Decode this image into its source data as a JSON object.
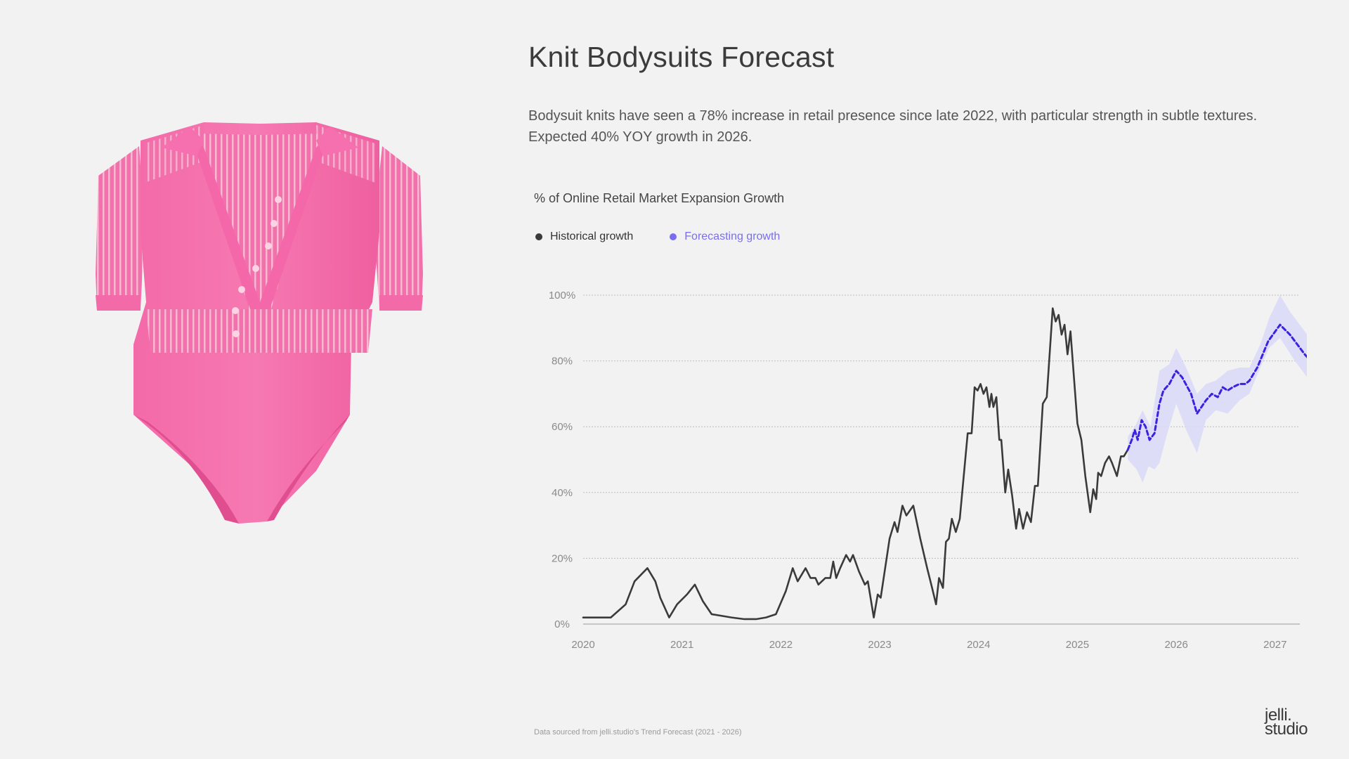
{
  "title": "Knit Bodysuits Forecast",
  "description": "Bodysuit knits have seen a 78% increase in retail presence since late 2022, with particular strength in subtle textures. Expected 40% YOY growth in 2026.",
  "footnote": "Data sourced from jelli.studio's Trend Forecast (2021 - 2026)",
  "logo": {
    "line1": "jelli.",
    "line2": "studio"
  },
  "colors": {
    "historical": "#3a3a3a",
    "forecast": "#3a22e0",
    "forecast_band": "#dcdaf8",
    "forecast_legend": "#7a6ef0",
    "product": "#f06aa8"
  },
  "chart_data": {
    "type": "line",
    "title": "% of Online Retail Market Expansion Growth",
    "xlabel": "",
    "ylabel": "",
    "xlim": [
      2020,
      2027.25
    ],
    "ylim": [
      0,
      100
    ],
    "x_ticks": [
      "2020",
      "2021",
      "2022",
      "2023",
      "2024",
      "2025",
      "2026",
      "2027"
    ],
    "y_ticks": [
      "0%",
      "20%",
      "40%",
      "60%",
      "80%",
      "100%"
    ],
    "grid": true,
    "legend_position": "top-left",
    "series": [
      {
        "name": "Historical growth",
        "style": "solid",
        "points": [
          [
            2020.0,
            2
          ],
          [
            2020.15,
            2
          ],
          [
            2020.28,
            2
          ],
          [
            2020.43,
            6
          ],
          [
            2020.52,
            13
          ],
          [
            2020.65,
            17
          ],
          [
            2020.73,
            13
          ],
          [
            2020.78,
            8
          ],
          [
            2020.87,
            2
          ],
          [
            2020.95,
            6
          ],
          [
            2021.05,
            9
          ],
          [
            2021.13,
            12
          ],
          [
            2021.21,
            7
          ],
          [
            2021.3,
            3
          ],
          [
            2021.5,
            2
          ],
          [
            2021.63,
            1.5
          ],
          [
            2021.75,
            1.5
          ],
          [
            2021.85,
            2
          ],
          [
            2021.95,
            3
          ],
          [
            2022.05,
            10
          ],
          [
            2022.12,
            17
          ],
          [
            2022.17,
            13
          ],
          [
            2022.25,
            17
          ],
          [
            2022.3,
            14
          ],
          [
            2022.35,
            14
          ],
          [
            2022.38,
            12
          ],
          [
            2022.45,
            14
          ],
          [
            2022.5,
            14
          ],
          [
            2022.53,
            19
          ],
          [
            2022.56,
            14
          ],
          [
            2022.6,
            17
          ],
          [
            2022.66,
            21
          ],
          [
            2022.7,
            19
          ],
          [
            2022.73,
            21
          ],
          [
            2022.79,
            16
          ],
          [
            2022.85,
            12
          ],
          [
            2022.88,
            13
          ],
          [
            2022.94,
            2
          ],
          [
            2022.98,
            9
          ],
          [
            2023.01,
            8
          ],
          [
            2023.1,
            26
          ],
          [
            2023.15,
            31
          ],
          [
            2023.18,
            28
          ],
          [
            2023.23,
            36
          ],
          [
            2023.27,
            33
          ],
          [
            2023.34,
            36
          ],
          [
            2023.41,
            26
          ],
          [
            2023.48,
            17
          ],
          [
            2023.53,
            11
          ],
          [
            2023.57,
            6
          ],
          [
            2023.6,
            14
          ],
          [
            2023.64,
            11
          ],
          [
            2023.67,
            25
          ],
          [
            2023.7,
            26
          ],
          [
            2023.73,
            32
          ],
          [
            2023.77,
            28
          ],
          [
            2023.81,
            32
          ],
          [
            2023.85,
            45
          ],
          [
            2023.89,
            58
          ],
          [
            2023.93,
            58
          ],
          [
            2023.96,
            72
          ],
          [
            2023.99,
            71
          ],
          [
            2024.02,
            73
          ],
          [
            2024.05,
            70
          ],
          [
            2024.08,
            72
          ],
          [
            2024.11,
            66
          ],
          [
            2024.13,
            70
          ],
          [
            2024.15,
            66
          ],
          [
            2024.18,
            69
          ],
          [
            2024.21,
            56
          ],
          [
            2024.23,
            56
          ],
          [
            2024.27,
            40
          ],
          [
            2024.3,
            47
          ],
          [
            2024.34,
            39
          ],
          [
            2024.38,
            29
          ],
          [
            2024.41,
            35
          ],
          [
            2024.45,
            29
          ],
          [
            2024.49,
            34
          ],
          [
            2024.53,
            31
          ],
          [
            2024.57,
            42
          ],
          [
            2024.6,
            42
          ],
          [
            2024.65,
            67
          ],
          [
            2024.69,
            69
          ],
          [
            2024.75,
            96
          ],
          [
            2024.78,
            92
          ],
          [
            2024.81,
            94
          ],
          [
            2024.84,
            88
          ],
          [
            2024.87,
            91
          ],
          [
            2024.9,
            82
          ],
          [
            2024.93,
            89
          ],
          [
            2024.97,
            73
          ],
          [
            2025.0,
            61
          ],
          [
            2025.04,
            56
          ],
          [
            2025.08,
            45
          ],
          [
            2025.13,
            34
          ],
          [
            2025.16,
            41
          ],
          [
            2025.19,
            38
          ],
          [
            2025.21,
            46
          ],
          [
            2025.24,
            45
          ],
          [
            2025.28,
            49
          ],
          [
            2025.32,
            51
          ],
          [
            2025.35,
            49
          ],
          [
            2025.4,
            45
          ],
          [
            2025.44,
            51
          ],
          [
            2025.47,
            51
          ],
          [
            2025.51,
            53
          ]
        ]
      },
      {
        "name": "Forecasting growth",
        "style": "dashed",
        "points": [
          [
            2025.51,
            53
          ],
          [
            2025.55,
            56
          ],
          [
            2025.58,
            59
          ],
          [
            2025.61,
            56
          ],
          [
            2025.65,
            62
          ],
          [
            2025.69,
            60
          ],
          [
            2025.73,
            56
          ],
          [
            2025.78,
            58
          ],
          [
            2025.83,
            67
          ],
          [
            2025.87,
            71
          ],
          [
            2025.93,
            73
          ],
          [
            2026.0,
            77
          ],
          [
            2026.06,
            75
          ],
          [
            2026.15,
            70
          ],
          [
            2026.21,
            64
          ],
          [
            2026.3,
            68
          ],
          [
            2026.36,
            70
          ],
          [
            2026.42,
            69
          ],
          [
            2026.47,
            72
          ],
          [
            2026.52,
            71
          ],
          [
            2026.57,
            72
          ],
          [
            2026.64,
            73
          ],
          [
            2026.7,
            73
          ],
          [
            2026.74,
            74
          ],
          [
            2026.82,
            78
          ],
          [
            2026.93,
            86
          ],
          [
            2027.05,
            91
          ],
          [
            2027.15,
            88
          ],
          [
            2027.3,
            82
          ],
          [
            2027.45,
            77
          ]
        ],
        "band_upper": [
          [
            2025.51,
            57
          ],
          [
            2025.58,
            60
          ],
          [
            2025.66,
            65
          ],
          [
            2025.74,
            60
          ],
          [
            2025.83,
            77
          ],
          [
            2025.93,
            79
          ],
          [
            2026.0,
            84
          ],
          [
            2026.1,
            78
          ],
          [
            2026.21,
            70
          ],
          [
            2026.3,
            73
          ],
          [
            2026.4,
            74
          ],
          [
            2026.52,
            77
          ],
          [
            2026.64,
            78
          ],
          [
            2026.74,
            78
          ],
          [
            2026.85,
            85
          ],
          [
            2026.94,
            93
          ],
          [
            2027.05,
            100
          ],
          [
            2027.15,
            95
          ],
          [
            2027.3,
            89
          ],
          [
            2027.52,
            80
          ],
          [
            2027.62,
            75
          ]
        ],
        "band_lower": [
          [
            2025.51,
            50
          ],
          [
            2025.6,
            47
          ],
          [
            2025.66,
            43
          ],
          [
            2025.72,
            48
          ],
          [
            2025.78,
            47
          ],
          [
            2025.83,
            49
          ],
          [
            2025.9,
            57
          ],
          [
            2026.0,
            67
          ],
          [
            2026.1,
            59
          ],
          [
            2026.21,
            52
          ],
          [
            2026.3,
            62
          ],
          [
            2026.4,
            65
          ],
          [
            2026.52,
            64
          ],
          [
            2026.64,
            68
          ],
          [
            2026.74,
            70
          ],
          [
            2026.85,
            78
          ],
          [
            2026.94,
            84
          ],
          [
            2027.05,
            87
          ],
          [
            2027.2,
            80
          ],
          [
            2027.35,
            74
          ],
          [
            2027.5,
            70
          ],
          [
            2027.62,
            71
          ]
        ]
      }
    ]
  }
}
